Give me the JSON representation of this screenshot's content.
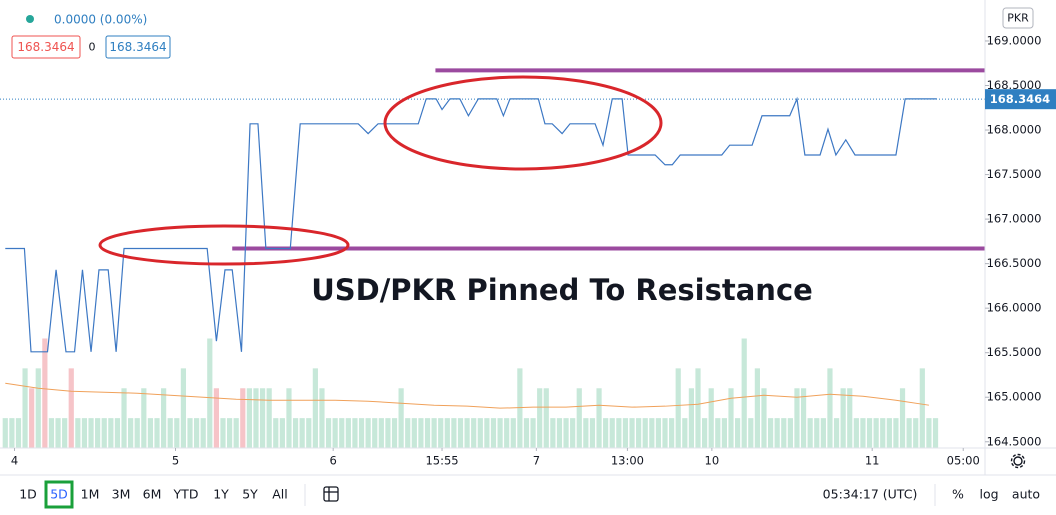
{
  "chart_data": {
    "type": "line",
    "annotation": "USD/PKR Pinned To Resistance",
    "currency": "PKR",
    "change": "0.0000 (0.00%)",
    "spread": "0",
    "last": 168.3464,
    "last_color": "#2f7fc1",
    "xlim": [
      -0.8,
      148.5
    ],
    "xticks": [
      {
        "value": 1.4,
        "label": "4"
      },
      {
        "value": 25.8,
        "label": "5"
      },
      {
        "value": 49.7,
        "label": "6"
      },
      {
        "value": 66.2,
        "label": "15:55"
      },
      {
        "value": 80.5,
        "label": "7"
      },
      {
        "value": 94.3,
        "label": "13:00"
      },
      {
        "value": 107.1,
        "label": "10"
      },
      {
        "value": 131.4,
        "label": "11"
      },
      {
        "value": 145.2,
        "label": "05:00"
      }
    ],
    "ylim": [
      164.43,
      169.46
    ],
    "yticks": [
      {
        "value": 164.5,
        "label": "164.5000"
      },
      {
        "value": 165,
        "label": "165.0000"
      },
      {
        "value": 165.5,
        "label": "165.5000"
      },
      {
        "value": 166,
        "label": "166.0000"
      },
      {
        "value": 166.5,
        "label": "166.5000"
      },
      {
        "value": 167,
        "label": "167.0000"
      },
      {
        "value": 167.5,
        "label": "167.5000"
      },
      {
        "value": 168,
        "label": "168.0000"
      },
      {
        "value": 168.5,
        "label": "168.5000"
      },
      {
        "value": 169,
        "label": "169.0000"
      }
    ],
    "series": [
      {
        "color": "#3d78c4",
        "x": [
          0,
          2.9,
          3.9,
          6.4,
          7.7,
          9.2,
          10.5,
          11.7,
          13.0,
          14.2,
          15.6,
          16.8,
          18.0,
          30.6,
          32.0,
          33.3,
          34.4,
          35.8,
          37.1,
          38.3,
          39.5,
          43.2,
          44.7,
          53.5,
          55.0,
          56.5,
          62.6,
          63.8,
          65.3,
          66.2,
          67.4,
          68.9,
          70.2,
          71.7,
          74.5,
          75.5,
          76.5,
          80.8,
          81.8,
          82.9,
          84.4,
          85.6,
          89.4,
          90.6,
          92.0,
          93.5,
          94.4,
          98.5,
          100.0,
          101.1,
          102.3,
          108.6,
          109.8,
          113.2,
          114.7,
          118.9,
          120.0,
          121.2,
          123.5,
          124.7,
          125.9,
          127.4,
          128.8,
          135.0,
          136.4,
          141.2
        ],
        "values": [
          166.67,
          166.67,
          165.51,
          165.51,
          166.43,
          165.51,
          165.51,
          166.43,
          165.51,
          166.43,
          166.43,
          165.51,
          166.67,
          166.67,
          165.63,
          166.43,
          166.43,
          165.51,
          168.07,
          168.07,
          166.67,
          166.67,
          168.07,
          168.07,
          167.96,
          168.07,
          168.07,
          168.35,
          168.35,
          168.23,
          168.35,
          168.35,
          168.16,
          168.35,
          168.35,
          168.16,
          168.35,
          168.35,
          168.07,
          168.07,
          167.96,
          168.07,
          168.07,
          167.83,
          168.35,
          168.35,
          167.72,
          167.72,
          167.61,
          167.61,
          167.72,
          167.72,
          167.83,
          167.83,
          168.16,
          168.16,
          168.35,
          167.72,
          167.72,
          168.01,
          167.72,
          167.89,
          167.72,
          167.72,
          168.35,
          168.35
        ]
      }
    ],
    "levels": {
      "color": "#9b4a9f",
      "lines": [
        {
          "value": 168.67,
          "from": 65.2
        },
        {
          "value": 166.67,
          "from": 34.4
        }
      ]
    },
    "volume": {
      "ylim": [
        0,
        45
      ],
      "series": [
        {
          "color": "#c7e8d9",
          "values": [
            3,
            3,
            3,
            8,
            null,
            8,
            null,
            3,
            3,
            3,
            null,
            3,
            3,
            3,
            3,
            3,
            3,
            3,
            6,
            3,
            3,
            6,
            3,
            3,
            6,
            3,
            3,
            8,
            3,
            3,
            3,
            11,
            null,
            3,
            3,
            3,
            null,
            6,
            6,
            6,
            6,
            3,
            3,
            6,
            3,
            3,
            3,
            8,
            6,
            3,
            3,
            3,
            3,
            3,
            3,
            3,
            3,
            3,
            3,
            3,
            6,
            3,
            3,
            3,
            3,
            3,
            3,
            3,
            3,
            3,
            3,
            3,
            3,
            3,
            3,
            3,
            3,
            3,
            8,
            3,
            3,
            6,
            6,
            3,
            3,
            3,
            3,
            6,
            3,
            3,
            6,
            3,
            3,
            3,
            3,
            3,
            3,
            3,
            3,
            3,
            3,
            3,
            8,
            3,
            6,
            8,
            3,
            6,
            3,
            3,
            6,
            3,
            11,
            3,
            8,
            6,
            3,
            3,
            3,
            3,
            6,
            6,
            3,
            3,
            3,
            8,
            3,
            6,
            6,
            3,
            3,
            3,
            3,
            3,
            3,
            3,
            6,
            3,
            3,
            8,
            3,
            3
          ]
        },
        {
          "color": "#f6c4c8",
          "values": [
            null,
            null,
            null,
            null,
            6,
            null,
            11,
            null,
            null,
            null,
            8,
            null,
            null,
            null,
            null,
            null,
            null,
            null,
            null,
            null,
            null,
            null,
            null,
            null,
            null,
            null,
            null,
            null,
            null,
            null,
            null,
            null,
            6,
            null,
            null,
            null,
            6,
            null,
            null,
            null,
            null,
            null,
            null,
            null,
            null,
            null,
            null,
            null,
            null,
            null,
            null,
            null,
            null,
            null,
            null,
            null,
            null,
            null,
            null,
            null,
            null,
            null,
            null,
            null,
            null,
            null,
            null,
            null,
            null,
            null,
            null,
            null,
            null,
            null,
            null,
            null,
            null,
            null,
            null,
            null,
            null,
            null,
            null,
            null,
            null,
            null,
            null,
            null,
            null,
            null,
            null,
            null,
            null,
            null,
            null,
            null,
            null,
            null,
            null,
            null,
            null,
            null,
            null,
            null,
            null,
            null,
            null,
            null,
            null,
            null,
            null,
            null,
            null,
            null,
            null,
            null,
            null,
            null,
            null,
            null,
            null,
            null,
            null,
            null,
            null,
            null,
            null,
            null,
            null,
            null,
            null,
            null,
            null,
            null,
            null,
            null,
            null,
            null,
            null,
            null,
            null,
            null
          ]
        }
      ],
      "ma": {
        "color": "#f0a15a",
        "x": [
          0,
          5,
          10,
          15,
          20,
          25,
          30,
          35,
          40,
          45,
          50,
          55,
          60,
          65,
          70,
          75,
          80,
          85,
          90,
          95,
          100,
          105,
          110,
          115,
          120,
          125,
          130,
          135,
          140
        ],
        "values": [
          6.5,
          6.0,
          5.7,
          5.6,
          5.5,
          5.3,
          5.1,
          4.9,
          4.8,
          4.8,
          4.8,
          4.7,
          4.5,
          4.3,
          4.2,
          4.0,
          4.1,
          4.1,
          4.3,
          4.1,
          4.2,
          4.4,
          5.0,
          5.3,
          5.1,
          5.4,
          5.2,
          4.8,
          4.3
        ]
      }
    }
  },
  "ui": {
    "ranges": [
      "1D",
      "5D",
      "1M",
      "3M",
      "6M",
      "YTD",
      "1Y",
      "5Y",
      "All"
    ],
    "clock": "05:34:17 (UTC)",
    "percent": "%",
    "log": "log",
    "auto": "auto"
  }
}
